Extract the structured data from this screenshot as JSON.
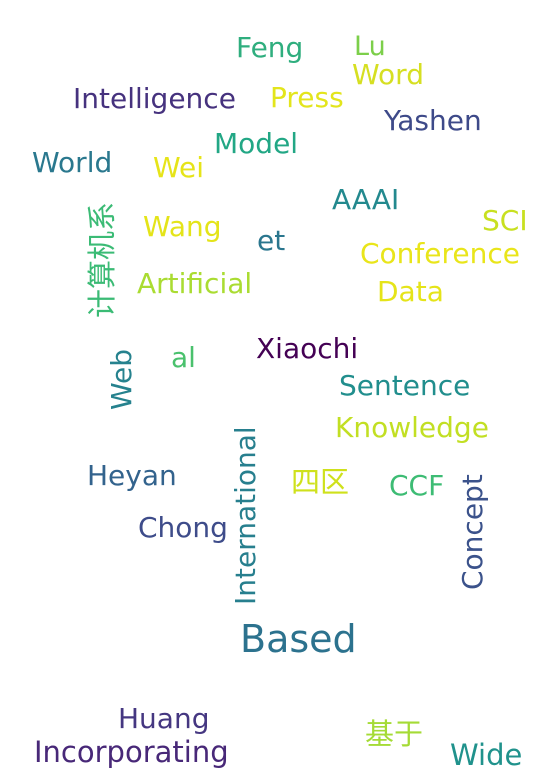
{
  "words": [
    {
      "text": "Feng",
      "color": "#2fae7e"
    },
    {
      "text": "Lu",
      "color": "#7ccf4a"
    },
    {
      "text": "Word",
      "color": "#d6df22"
    },
    {
      "text": "Intelligence",
      "color": "#46327e"
    },
    {
      "text": "Press",
      "color": "#e3e51c"
    },
    {
      "text": "Yashen",
      "color": "#3e4a89"
    },
    {
      "text": "Model",
      "color": "#22a785"
    },
    {
      "text": "World",
      "color": "#2a788e"
    },
    {
      "text": "Wei",
      "color": "#e6e419"
    },
    {
      "text": "AAAI",
      "color": "#23898e"
    },
    {
      "text": "SCI",
      "color": "#c8e020"
    },
    {
      "text": "Wang",
      "color": "#e4e419"
    },
    {
      "text": "et",
      "color": "#2a768e"
    },
    {
      "text": "Conference",
      "color": "#e9e51a"
    },
    {
      "text": "计算机系",
      "color": "#3bbb75"
    },
    {
      "text": "Artificial",
      "color": "#aadc32"
    },
    {
      "text": "Data",
      "color": "#e5e419"
    },
    {
      "text": "Web",
      "color": "#26828e"
    },
    {
      "text": "al",
      "color": "#4ac16d"
    },
    {
      "text": "Xiaochi",
      "color": "#440154"
    },
    {
      "text": "Sentence",
      "color": "#218e8d"
    },
    {
      "text": "Knowledge",
      "color": "#c2df23"
    },
    {
      "text": "International",
      "color": "#277f8e"
    },
    {
      "text": "Heyan",
      "color": "#33638d"
    },
    {
      "text": "四区",
      "color": "#cfe11c"
    },
    {
      "text": "CCF",
      "color": "#3dbc74"
    },
    {
      "text": "Concept",
      "color": "#3b528b"
    },
    {
      "text": "Chong",
      "color": "#3e4c8a"
    },
    {
      "text": "Based",
      "color": "#2c728e"
    },
    {
      "text": "Huang",
      "color": "#453781"
    },
    {
      "text": "基于",
      "color": "#a5db36"
    },
    {
      "text": "Incorporating",
      "color": "#482878"
    },
    {
      "text": "Wide",
      "color": "#20928c"
    }
  ]
}
